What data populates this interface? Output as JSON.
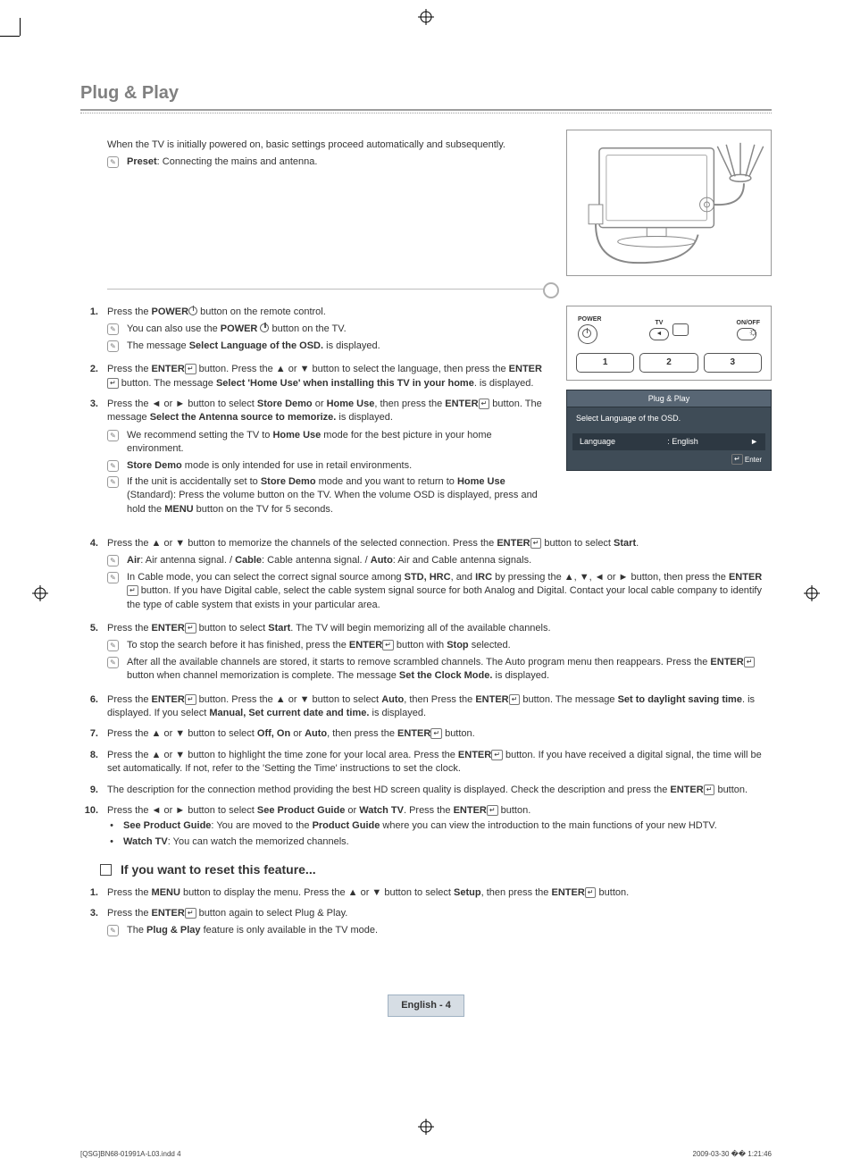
{
  "page": {
    "section_title": "Plug & Play",
    "intro": "When the TV is initially powered on, basic settings proceed automatically and subsequently.",
    "intro_note_bold": "Preset",
    "intro_note_rest": ": Connecting the mains and antenna.",
    "footer_lang": "English - 4",
    "indd": "[QSG]BN68-01991A-L03.indd   4",
    "print_time": "2009-03-30   �� 1:21:46"
  },
  "remote": {
    "power_label": "POWER",
    "tv_label": "TV",
    "onoff_label": "ON/OFF",
    "btn1": "1",
    "btn2": "2",
    "btn3": "3"
  },
  "osd": {
    "title": "Plug & Play",
    "subtitle": "Select Language of the OSD.",
    "lang_label": "Language",
    "lang_value": ": English",
    "arrow": "►",
    "footer_icon": "↵",
    "footer_label": "Enter"
  },
  "steps": [
    {
      "num": "1.",
      "body_parts": [
        "Press the ",
        {
          "b": "POWER"
        },
        {
          "power": true
        },
        " button on the remote control."
      ],
      "notes": [
        {
          "parts": [
            "You can also use the ",
            {
              "b": "POWER"
            },
            " ",
            {
              "power": true
            },
            " button on the TV."
          ]
        },
        {
          "parts": [
            "The message ",
            {
              "b": "Select Language of the OSD."
            },
            " is displayed."
          ]
        }
      ]
    },
    {
      "num": "2.",
      "body_parts": [
        "Press the ",
        {
          "b": "ENTER"
        },
        {
          "enter": true
        },
        " button. Press the ▲ or ▼ button to select the language, then press the ",
        {
          "b": "ENTER"
        },
        {
          "enter": true
        },
        " button. The message ",
        {
          "b": "Select 'Home Use' when installing this TV in your home"
        },
        ". is displayed."
      ]
    },
    {
      "num": "3.",
      "body_parts": [
        "Press the ◄ or ► button to select ",
        {
          "b": "Store Demo"
        },
        " or ",
        {
          "b": "Home Use"
        },
        ", then press the ",
        {
          "b": "ENTER"
        },
        {
          "enter": true
        },
        " button. The message ",
        {
          "b": "Select the Antenna source to memorize."
        },
        " is displayed."
      ],
      "notes": [
        {
          "parts": [
            "We recommend setting the TV to ",
            {
              "b": "Home Use"
            },
            " mode for the best picture in your home environment."
          ]
        },
        {
          "parts": [
            {
              "b": "Store Demo"
            },
            " mode is only intended for use in retail environments."
          ]
        },
        {
          "parts": [
            "If the unit is accidentally set to ",
            {
              "b": "Store Demo"
            },
            " mode and you want to return to ",
            {
              "b": "Home Use"
            },
            " (Standard): Press the volume button on the TV. When the volume OSD is displayed, press and hold the ",
            {
              "b": "MENU"
            },
            " button on the TV for 5 seconds."
          ]
        }
      ]
    },
    {
      "num": "4.",
      "body_parts": [
        "Press the ▲ or ▼ button to memorize the channels of the selected connection. Press the ",
        {
          "b": "ENTER"
        },
        {
          "enter": true
        },
        " button to select ",
        {
          "b": "Start"
        },
        "."
      ],
      "notes": [
        {
          "parts": [
            {
              "b": "Air"
            },
            ": Air antenna signal. / ",
            {
              "b": "Cable"
            },
            ": Cable antenna signal. / ",
            {
              "b": "Auto"
            },
            ": Air and Cable antenna signals."
          ]
        },
        {
          "parts": [
            "In Cable mode, you can select the correct signal source among ",
            {
              "b": "STD, HRC"
            },
            ", and ",
            {
              "b": "IRC"
            },
            " by pressing the ▲, ▼, ◄ or ► button, then press the ",
            {
              "b": "ENTER"
            },
            {
              "enter": true
            },
            " button. If you have Digital cable, select the cable system signal source for both Analog and Digital. Contact your local cable company to identify the type of cable system that exists in your particular area."
          ]
        }
      ]
    },
    {
      "num": "5.",
      "body_parts": [
        "Press the ",
        {
          "b": "ENTER"
        },
        {
          "enter": true
        },
        " button to select ",
        {
          "b": "Start"
        },
        ". The TV will begin memorizing all of the available channels."
      ],
      "notes": [
        {
          "parts": [
            "To stop the search before it has finished, press the ",
            {
              "b": "ENTER"
            },
            {
              "enter": true
            },
            " button with ",
            {
              "b": "Stop"
            },
            " selected."
          ]
        },
        {
          "parts": [
            "After all the available channels are stored, it starts to remove scrambled channels. The Auto program menu then reappears. Press the ",
            {
              "b": "ENTER"
            },
            {
              "enter": true
            },
            " button when channel memorization is complete. The message ",
            {
              "b": "Set the Clock Mode."
            },
            " is displayed."
          ]
        }
      ]
    },
    {
      "num": "6.",
      "body_parts": [
        "Press the ",
        {
          "b": "ENTER"
        },
        {
          "enter": true
        },
        " button. Press the ▲ or ▼ button to select ",
        {
          "b": "Auto"
        },
        ", then Press the ",
        {
          "b": "ENTER"
        },
        {
          "enter": true
        },
        " button. The message ",
        {
          "b": "Set to daylight saving time"
        },
        ". is displayed. If you select ",
        {
          "b": "Manual, Set current date and time."
        },
        " is displayed."
      ]
    },
    {
      "num": "7.",
      "body_parts": [
        "Press the ▲ or ▼ button to select ",
        {
          "b": "Off, On"
        },
        " or ",
        {
          "b": "Auto"
        },
        ", then press the ",
        {
          "b": "ENTER"
        },
        {
          "enter": true
        },
        " button."
      ]
    },
    {
      "num": "8.",
      "body_parts": [
        "Press the ▲ or ▼ button to highlight the time zone for your local area. Press the ",
        {
          "b": "ENTER"
        },
        {
          "enter": true
        },
        " button. If you have received a digital signal, the time will be set automatically. If not, refer to the 'Setting the Time' instructions to set the clock."
      ]
    },
    {
      "num": "9.",
      "body_parts": [
        "The description for the connection method providing the best HD screen quality is displayed. Check the description and press the ",
        {
          "b": "ENTER"
        },
        {
          "enter": true
        },
        " button."
      ]
    },
    {
      "num": "10.",
      "body_parts": [
        "Press the ◄ or ► button to select ",
        {
          "b": "See Product Guide"
        },
        " or ",
        {
          "b": "Watch TV"
        },
        ". Press the ",
        {
          "b": "ENTER"
        },
        {
          "enter": true
        },
        " button."
      ],
      "bullets": [
        {
          "parts": [
            {
              "b": "See Product Guide"
            },
            ": You are moved to the ",
            {
              "b": "Product Guide"
            },
            " where you can view the introduction to the main functions of your new HDTV."
          ]
        },
        {
          "parts": [
            {
              "b": "Watch TV"
            },
            ": You can watch the memorized channels."
          ]
        }
      ]
    }
  ],
  "reset": {
    "heading": "If you want to reset this feature...",
    "steps": [
      {
        "num": "1.",
        "parts": [
          "Press the ",
          {
            "b": "MENU"
          },
          " button to display the menu. Press the ▲ or ▼ button to select ",
          {
            "b": "Setup"
          },
          ", then press the ",
          {
            "b": "ENTER"
          },
          {
            "enter": true
          },
          " button."
        ]
      },
      {
        "num": "3.",
        "parts": [
          "Press the ",
          {
            "b": "ENTER"
          },
          {
            "enter": true
          },
          " button again to select Plug & Play."
        ],
        "notes": [
          {
            "parts": [
              "The ",
              {
                "b": "Plug & Play"
              },
              " feature is only available in the TV mode."
            ]
          }
        ]
      }
    ]
  },
  "colors": {
    "title_gray": "#808080",
    "osd_bg": "#3f4c57",
    "osd_header": "#586674",
    "osd_row": "#2d3842",
    "footer_box_bg": "#d6dde4",
    "footer_box_border": "#9fb1c2"
  }
}
